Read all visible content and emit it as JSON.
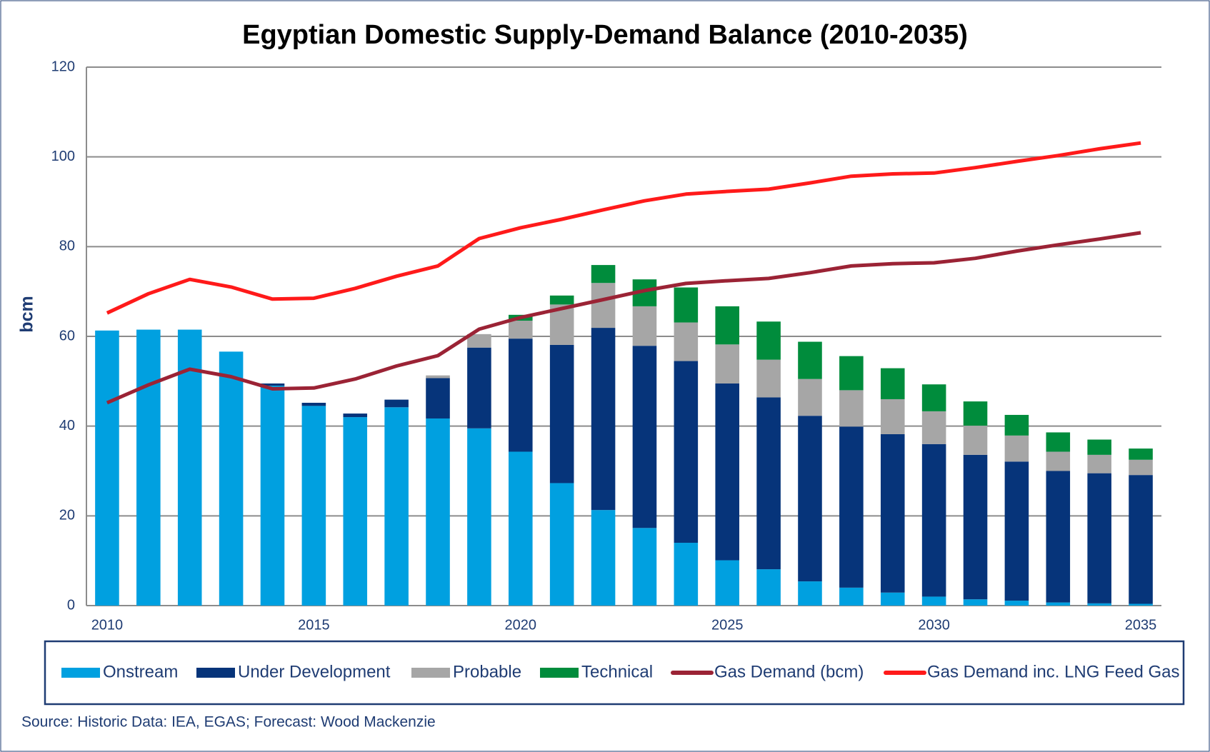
{
  "chart_data": {
    "type": "bar",
    "stacked": true,
    "title": "Egyptian Domestic Supply-Demand Balance (2010-2035)",
    "y_label": "bcm",
    "source": "Source: Historic Data: IEA, EGAS; Forecast: Wood Mackenzie",
    "categories": [
      "2010",
      null,
      null,
      null,
      null,
      "2015",
      null,
      null,
      null,
      null,
      "2020",
      null,
      null,
      null,
      null,
      "2025",
      null,
      null,
      null,
      null,
      "2030",
      null,
      null,
      null,
      null,
      "2035"
    ],
    "ylim": [
      0,
      120
    ],
    "yticks": [
      0,
      20,
      40,
      60,
      80,
      100,
      120
    ],
    "grid": true,
    "legend": "bottom",
    "series": [
      {
        "name": "Onstream",
        "color": "#00a0e0",
        "values": [
          61.3,
          61.5,
          61.5,
          56.6,
          49,
          44.5,
          42,
          44.2,
          41.7,
          39.5,
          34.3,
          27.3,
          21.3,
          17.3,
          14,
          10.1,
          8.1,
          5.4,
          4,
          2.9,
          2,
          1.4,
          1.1,
          0.7,
          0.5,
          0.4
        ]
      },
      {
        "name": "Under Development",
        "color": "#06347a",
        "values": [
          0,
          0,
          0,
          0,
          0.5,
          0.7,
          0.8,
          1.7,
          9,
          18,
          25.2,
          30.8,
          40.6,
          40.6,
          40.5,
          39.4,
          38.3,
          36.9,
          35.9,
          35.3,
          34,
          32.2,
          31,
          29.3,
          29,
          28.7
        ]
      },
      {
        "name": "Probable",
        "color": "#a6a6a6",
        "values": [
          0,
          0,
          0,
          0,
          0,
          0,
          0,
          0,
          0.6,
          3,
          4,
          9,
          10,
          8.8,
          8.6,
          8.7,
          8.4,
          8.2,
          8.1,
          7.8,
          7.3,
          6.5,
          5.8,
          4.3,
          4.1,
          3.4
        ]
      },
      {
        "name": "Technical",
        "color": "#008c3c",
        "values": [
          0,
          0,
          0,
          0,
          0,
          0,
          0,
          0,
          0,
          0,
          1.3,
          2,
          4,
          6,
          7.8,
          8.5,
          8.5,
          8.3,
          7.6,
          6.9,
          6,
          5.4,
          4.6,
          4.3,
          3.4,
          2.5
        ]
      },
      {
        "name": "Gas Demand (bcm)",
        "type": "line",
        "color": "#9b2335",
        "values": [
          45.2,
          49.2,
          52.7,
          51,
          48.3,
          48.5,
          50.5,
          53.4,
          55.7,
          61.6,
          64.2,
          66.2,
          68.2,
          70.2,
          71.8,
          72.4,
          72.9,
          74.2,
          75.7,
          76.2,
          76.4,
          77.4,
          79,
          80.4,
          81.7,
          83.1
        ]
      },
      {
        "name": "Gas Demand inc. LNG Feed Gas",
        "type": "line",
        "color": "#ff1a1a",
        "values": [
          65.2,
          69.5,
          72.7,
          71,
          68.3,
          68.5,
          70.7,
          73.4,
          75.7,
          81.8,
          84.2,
          86.1,
          88.2,
          90.2,
          91.7,
          92.3,
          92.8,
          94.2,
          95.7,
          96.2,
          96.4,
          97.6,
          99,
          100.3,
          101.8,
          103.1
        ]
      }
    ]
  }
}
